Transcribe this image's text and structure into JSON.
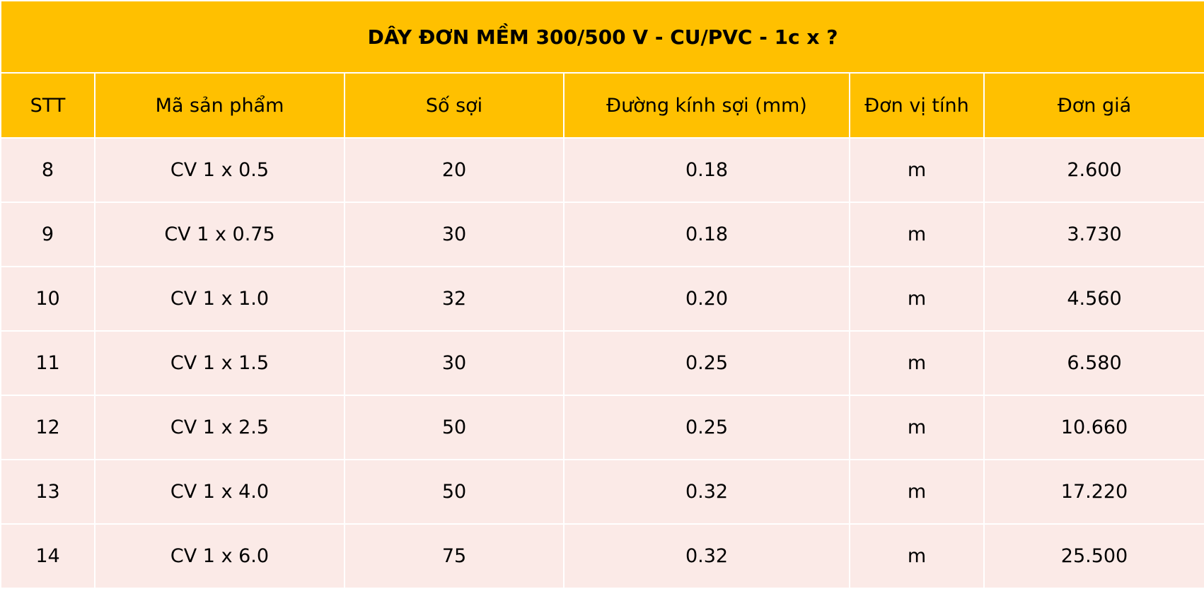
{
  "table": {
    "title": "DÂY ĐƠN MỀM 300/500 V - CU/PVC - 1c x ?",
    "headers": {
      "stt": "STT",
      "product_code": "Mã sản phẩm",
      "strand_count": "Số sợi",
      "strand_diameter": "Đường kính sợi (mm)",
      "unit": "Đơn vị tính",
      "unit_price": "Đơn giá"
    },
    "rows": [
      {
        "stt": "8",
        "product_code": "CV 1 x 0.5",
        "strand_count": "20",
        "strand_diameter": "0.18",
        "unit": "m",
        "unit_price": "2.600"
      },
      {
        "stt": "9",
        "product_code": "CV 1 x 0.75",
        "strand_count": "30",
        "strand_diameter": "0.18",
        "unit": "m",
        "unit_price": "3.730"
      },
      {
        "stt": "10",
        "product_code": "CV 1 x 1.0",
        "strand_count": "32",
        "strand_diameter": "0.20",
        "unit": "m",
        "unit_price": "4.560"
      },
      {
        "stt": "11",
        "product_code": "CV 1 x 1.5",
        "strand_count": "30",
        "strand_diameter": "0.25",
        "unit": "m",
        "unit_price": "6.580"
      },
      {
        "stt": "12",
        "product_code": "CV 1 x 2.5",
        "strand_count": "50",
        "strand_diameter": "0.25",
        "unit": "m",
        "unit_price": "10.660"
      },
      {
        "stt": "13",
        "product_code": "CV 1 x 4.0",
        "strand_count": "50",
        "strand_diameter": "0.32",
        "unit": "m",
        "unit_price": "17.220"
      },
      {
        "stt": "14",
        "product_code": "CV 1 x 6.0",
        "strand_count": "75",
        "strand_diameter": "0.32",
        "unit": "m",
        "unit_price": "25.500"
      }
    ]
  },
  "colors": {
    "header_background": "#FFC000",
    "row_background": "#FBEAE7",
    "grid_lines": "#FFFFFF"
  }
}
